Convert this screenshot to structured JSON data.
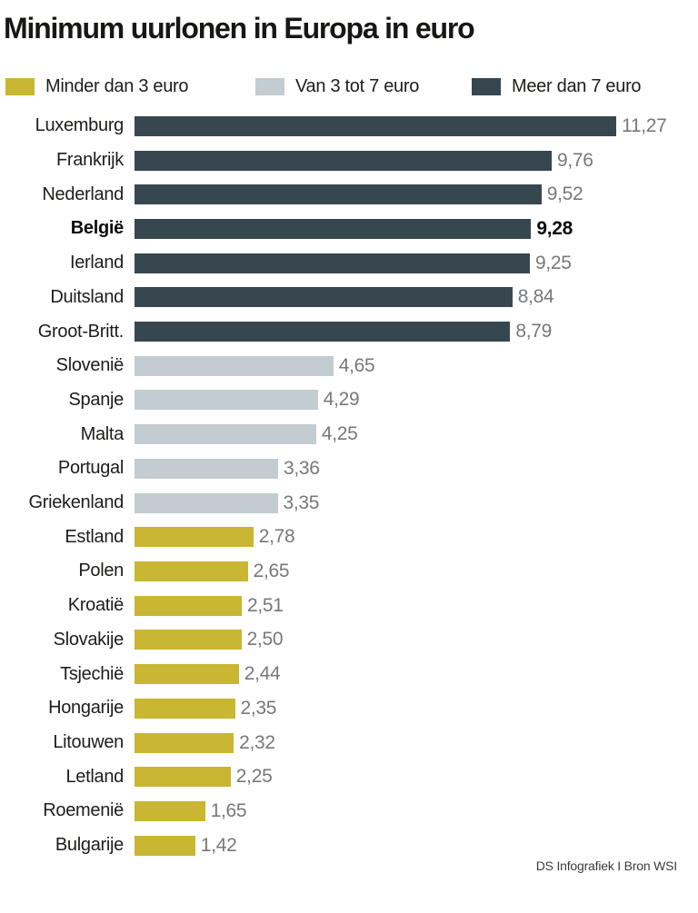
{
  "title": "Minimum uurlonen in Europa in euro",
  "legend": [
    {
      "label": "Minder dan 3 euro",
      "color": "#c9b632"
    },
    {
      "label": "Van 3 tot 7 euro",
      "color": "#c2ccd1"
    },
    {
      "label": "Meer dan 7 euro",
      "color": "#37474f"
    }
  ],
  "footer": "DS Infografiek I Bron WSI",
  "chart_data": {
    "type": "bar",
    "orientation": "horizontal",
    "title": "Minimum uurlonen in Europa in euro",
    "xlabel": "",
    "ylabel": "",
    "xlim": [
      0,
      11.27
    ],
    "grid": false,
    "legend_position": "top",
    "categories": [
      "Luxemburg",
      "Frankrijk",
      "Nederland",
      "België",
      "Ierland",
      "Duitsland",
      "Groot-Britt.",
      "Slovenië",
      "Spanje",
      "Malta",
      "Portugal",
      "Griekenland",
      "Estland",
      "Polen",
      "Kroatië",
      "Slovakije",
      "Tsjechië",
      "Hongarije",
      "Litouwen",
      "Letland",
      "Roemenië",
      "Bulgarije"
    ],
    "values": [
      11.27,
      9.76,
      9.52,
      9.28,
      9.25,
      8.84,
      8.79,
      4.65,
      4.29,
      4.25,
      3.36,
      3.35,
      2.78,
      2.65,
      2.51,
      2.5,
      2.44,
      2.35,
      2.32,
      2.25,
      1.65,
      1.42
    ],
    "display_values": [
      "11,27",
      "9,76",
      "9,52",
      "9,28",
      "9,25",
      "8,84",
      "8,79",
      "4,65",
      "4,29",
      "4,25",
      "3,36",
      "3,35",
      "2,78",
      "2,65",
      "2,51",
      "2,50",
      "2,44",
      "2,35",
      "2,32",
      "2,25",
      "1,65",
      "1,42"
    ],
    "group_thresholds": {
      "low_below": 3,
      "high_at_least": 7
    },
    "highlight": "België"
  }
}
